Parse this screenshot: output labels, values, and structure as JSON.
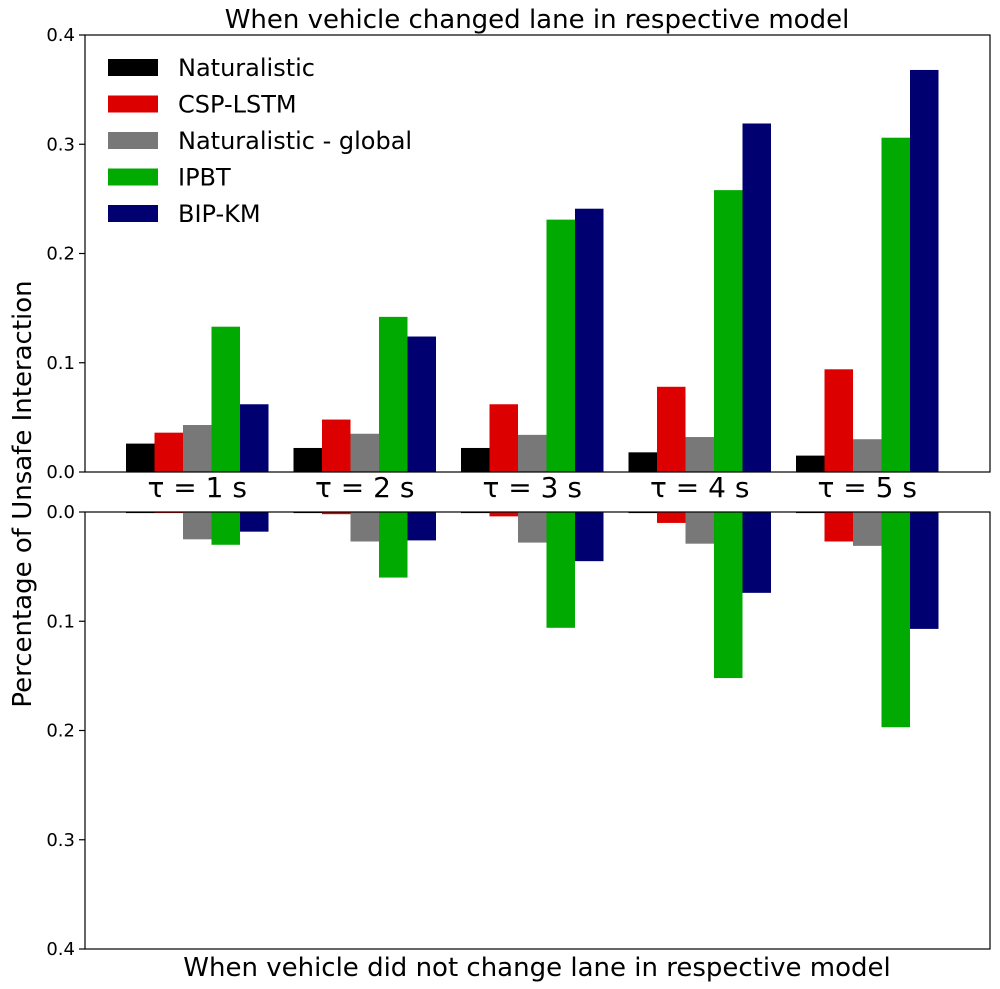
{
  "chart_data": {
    "type": "bar",
    "title": "When vehicle changed lane in respective model",
    "xlabel": "When vehicle did not change lane in respective model",
    "ylabel": "Percentage of Unsafe Interaction",
    "categories": [
      "τ = 1 s",
      "τ = 2 s",
      "τ = 3 s",
      "τ = 4 s",
      "τ = 5 s"
    ],
    "top_panel": {
      "ylim": [
        0,
        0.4
      ],
      "yticks": [
        "0.0",
        "0.1",
        "0.2",
        "0.3",
        "0.4"
      ],
      "series": [
        {
          "name": "Naturalistic",
          "color": "#000000",
          "values": [
            0.026,
            0.022,
            0.022,
            0.018,
            0.015
          ]
        },
        {
          "name": "CSP-LSTM",
          "color": "#dd0000",
          "values": [
            0.036,
            0.048,
            0.062,
            0.078,
            0.094
          ]
        },
        {
          "name": "Naturalistic - global",
          "color": "#787878",
          "values": [
            0.043,
            0.035,
            0.034,
            0.032,
            0.03
          ]
        },
        {
          "name": "IPBT",
          "color": "#00aa00",
          "values": [
            0.133,
            0.142,
            0.231,
            0.258,
            0.306
          ]
        },
        {
          "name": "BIP-KM",
          "color": "#000070",
          "values": [
            0.062,
            0.124,
            0.241,
            0.319,
            0.368
          ]
        }
      ]
    },
    "bottom_panel": {
      "ylim": [
        0,
        0.4
      ],
      "inverted": true,
      "yticks": [
        "0.0",
        "0.1",
        "0.2",
        "0.3",
        "0.4"
      ],
      "series": [
        {
          "name": "Naturalistic",
          "color": "#000000",
          "values": [
            0.001,
            0.001,
            0.001,
            0.001,
            0.001
          ]
        },
        {
          "name": "CSP-LSTM",
          "color": "#dd0000",
          "values": [
            0.001,
            0.002,
            0.004,
            0.01,
            0.027
          ]
        },
        {
          "name": "Naturalistic - global",
          "color": "#787878",
          "values": [
            0.025,
            0.027,
            0.028,
            0.029,
            0.031
          ]
        },
        {
          "name": "IPBT",
          "color": "#00aa00",
          "values": [
            0.03,
            0.06,
            0.106,
            0.152,
            0.197
          ]
        },
        {
          "name": "BIP-KM",
          "color": "#000070",
          "values": [
            0.018,
            0.026,
            0.045,
            0.074,
            0.107
          ]
        }
      ]
    },
    "legend": {
      "placement": "top-left",
      "entries": [
        "Naturalistic",
        "CSP-LSTM",
        "Naturalistic - global",
        "IPBT",
        "BIP-KM"
      ]
    }
  }
}
